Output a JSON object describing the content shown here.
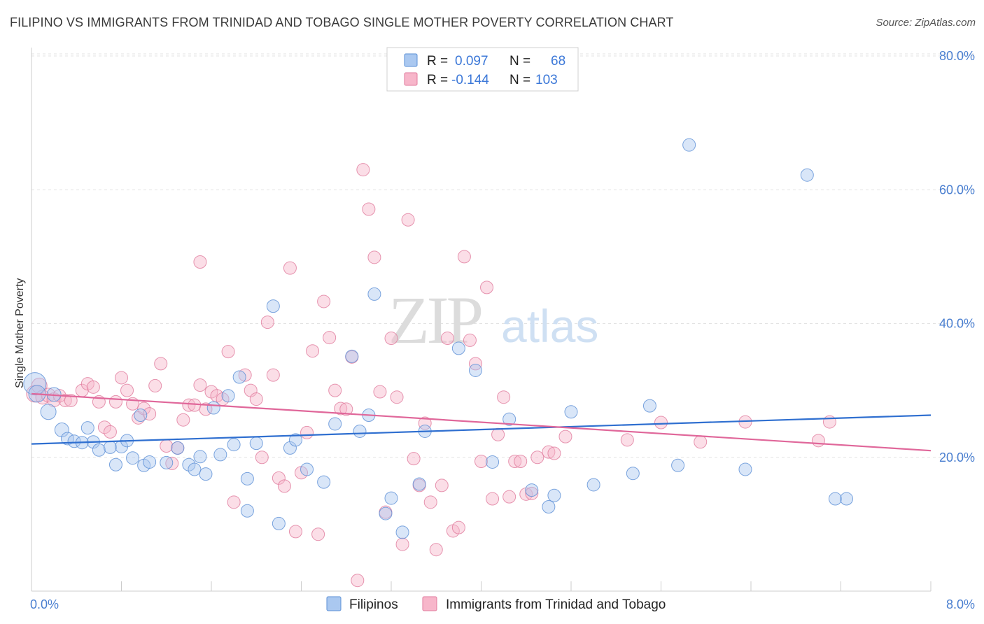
{
  "title": "FILIPINO VS IMMIGRANTS FROM TRINIDAD AND TOBAGO SINGLE MOTHER POVERTY CORRELATION CHART",
  "source": "Source: ZipAtlas.com",
  "watermark": {
    "zip": "ZIP",
    "atlas": "atlas"
  },
  "legend": {
    "rows": [
      {
        "r_label": "R =",
        "r_value": "0.097",
        "n_label": "N =",
        "n_value": "68",
        "color": "#aac8f0",
        "stroke": "#5b8fd6"
      },
      {
        "r_label": "R =",
        "r_value": "-0.144",
        "n_label": "N =",
        "n_value": "103",
        "color": "#f7b6ca",
        "stroke": "#e07a9c"
      }
    ]
  },
  "bottom_legend": [
    "Filipinos",
    "Immigrants from Trinidad and Tobago"
  ],
  "chart_data": {
    "type": "scatter",
    "title": "FILIPINO VS IMMIGRANTS FROM TRINIDAD AND TOBAGO SINGLE MOTHER POVERTY CORRELATION CHART",
    "xlabel": "",
    "ylabel": "Single Mother Poverty",
    "xlim": [
      0,
      8
    ],
    "ylim": [
      0,
      80
    ],
    "x_tick_labels": [
      "0.0%",
      "8.0%"
    ],
    "y_tick_labels": [
      "20.0%",
      "40.0%",
      "60.0%",
      "80.0%"
    ],
    "y_ticks": [
      20,
      40,
      60,
      80
    ],
    "grid": true,
    "legend_position": "top-center",
    "series": [
      {
        "name": "Filipinos",
        "color": "#5b8fd6",
        "fill": "#aac8f0",
        "trend": {
          "x": [
            0,
            8
          ],
          "y": [
            22.0,
            26.3
          ],
          "color": "#2f6fd0"
        },
        "points": [
          [
            0.03,
            31.0,
            16
          ],
          [
            0.05,
            29.5,
            12
          ],
          [
            0.15,
            26.8,
            11
          ],
          [
            0.2,
            29.4,
            10
          ],
          [
            0.27,
            24.1,
            10
          ],
          [
            0.32,
            22.8,
            9
          ],
          [
            0.38,
            22.4,
            9
          ],
          [
            0.45,
            22.2,
            9
          ],
          [
            0.5,
            24.4,
            9
          ],
          [
            0.55,
            22.3,
            9
          ],
          [
            0.6,
            21.1,
            9
          ],
          [
            0.7,
            21.5,
            9
          ],
          [
            0.8,
            21.6,
            9
          ],
          [
            0.85,
            22.5,
            9
          ],
          [
            0.9,
            19.9,
            9
          ],
          [
            0.97,
            26.3,
            9
          ],
          [
            0.75,
            18.9,
            9
          ],
          [
            1.0,
            18.8,
            9
          ],
          [
            1.05,
            19.3,
            9
          ],
          [
            1.2,
            19.2,
            9
          ],
          [
            1.3,
            21.4,
            9
          ],
          [
            1.4,
            18.9,
            9
          ],
          [
            1.45,
            18.2,
            9
          ],
          [
            1.5,
            20.1,
            9
          ],
          [
            1.55,
            17.5,
            9
          ],
          [
            1.62,
            27.4,
            9
          ],
          [
            1.68,
            20.4,
            9
          ],
          [
            1.75,
            29.2,
            9
          ],
          [
            1.8,
            21.9,
            9
          ],
          [
            1.85,
            32.0,
            9
          ],
          [
            1.92,
            16.8,
            9
          ],
          [
            1.92,
            12.0,
            9
          ],
          [
            2.0,
            22.1,
            9
          ],
          [
            2.15,
            42.6,
            9
          ],
          [
            2.2,
            10.1,
            9
          ],
          [
            2.3,
            21.4,
            9
          ],
          [
            2.35,
            22.6,
            9
          ],
          [
            2.45,
            18.2,
            9
          ],
          [
            2.6,
            16.3,
            9
          ],
          [
            2.7,
            25.0,
            9
          ],
          [
            2.85,
            35.1,
            9
          ],
          [
            2.92,
            23.9,
            9
          ],
          [
            3.0,
            26.3,
            9
          ],
          [
            3.05,
            44.4,
            9
          ],
          [
            3.15,
            11.6,
            9
          ],
          [
            3.2,
            13.9,
            9
          ],
          [
            3.3,
            8.8,
            9
          ],
          [
            3.45,
            16.0,
            9
          ],
          [
            3.5,
            23.9,
            9
          ],
          [
            3.8,
            36.3,
            9
          ],
          [
            3.95,
            33.0,
            9
          ],
          [
            4.1,
            19.3,
            9
          ],
          [
            4.25,
            25.7,
            9
          ],
          [
            4.45,
            15.1,
            9
          ],
          [
            4.6,
            12.6,
            9
          ],
          [
            4.65,
            14.3,
            9
          ],
          [
            4.8,
            26.8,
            9
          ],
          [
            5.0,
            15.9,
            9
          ],
          [
            5.35,
            17.6,
            9
          ],
          [
            5.5,
            27.7,
            9
          ],
          [
            5.75,
            18.8,
            9
          ],
          [
            5.85,
            66.7,
            9
          ],
          [
            6.35,
            18.2,
            9
          ],
          [
            6.9,
            62.2,
            9
          ],
          [
            7.15,
            13.8,
            9
          ],
          [
            7.25,
            13.8,
            9
          ]
        ]
      },
      {
        "name": "Immigrants from Trinidad and Tobago",
        "color": "#e07a9c",
        "fill": "#f7b6ca",
        "trend": {
          "x": [
            0,
            8
          ],
          "y": [
            29.5,
            21.0
          ],
          "color": "#e0679a"
        },
        "points": [
          [
            0.03,
            29.5,
            12
          ],
          [
            0.07,
            30.7,
            11
          ],
          [
            0.1,
            29.0,
            10
          ],
          [
            0.15,
            29.3,
            10
          ],
          [
            0.2,
            28.6,
            10
          ],
          [
            0.25,
            29.2,
            9
          ],
          [
            0.3,
            28.5,
            9
          ],
          [
            0.35,
            28.5,
            9
          ],
          [
            0.45,
            30.0,
            9
          ],
          [
            0.5,
            31.0,
            9
          ],
          [
            0.55,
            30.5,
            9
          ],
          [
            0.6,
            28.3,
            9
          ],
          [
            0.65,
            24.5,
            9
          ],
          [
            0.7,
            23.8,
            9
          ],
          [
            0.75,
            28.3,
            9
          ],
          [
            0.8,
            31.9,
            9
          ],
          [
            0.85,
            30.0,
            9
          ],
          [
            0.9,
            28.0,
            9
          ],
          [
            0.95,
            25.9,
            9
          ],
          [
            1.0,
            27.3,
            9
          ],
          [
            1.05,
            26.5,
            9
          ],
          [
            1.1,
            30.7,
            9
          ],
          [
            1.15,
            34.0,
            9
          ],
          [
            1.2,
            21.7,
            9
          ],
          [
            1.25,
            19.1,
            9
          ],
          [
            1.3,
            21.4,
            9
          ],
          [
            1.35,
            25.6,
            9
          ],
          [
            1.4,
            27.8,
            9
          ],
          [
            1.45,
            27.8,
            9
          ],
          [
            1.5,
            30.8,
            9
          ],
          [
            1.55,
            27.2,
            9
          ],
          [
            1.6,
            29.8,
            9
          ],
          [
            1.65,
            29.2,
            9
          ],
          [
            1.7,
            28.7,
            9
          ],
          [
            1.5,
            49.2,
            9
          ],
          [
            1.75,
            35.8,
            9
          ],
          [
            1.8,
            13.3,
            9
          ],
          [
            1.9,
            32.3,
            9
          ],
          [
            1.95,
            30.0,
            9
          ],
          [
            2.0,
            28.7,
            9
          ],
          [
            2.05,
            20.0,
            9
          ],
          [
            2.1,
            40.2,
            9
          ],
          [
            2.15,
            32.3,
            9
          ],
          [
            2.2,
            16.9,
            9
          ],
          [
            2.25,
            15.7,
            9
          ],
          [
            2.3,
            48.3,
            9
          ],
          [
            2.35,
            8.9,
            9
          ],
          [
            2.4,
            17.7,
            9
          ],
          [
            2.45,
            23.7,
            9
          ],
          [
            2.5,
            35.9,
            9
          ],
          [
            2.55,
            8.5,
            9
          ],
          [
            2.6,
            43.3,
            9
          ],
          [
            2.65,
            37.9,
            9
          ],
          [
            2.7,
            30.0,
            9
          ],
          [
            2.75,
            27.3,
            9
          ],
          [
            2.8,
            27.2,
            9
          ],
          [
            2.85,
            35.0,
            9
          ],
          [
            2.9,
            1.6,
            9
          ],
          [
            2.95,
            63.0,
            9
          ],
          [
            3.0,
            57.1,
            9
          ],
          [
            3.05,
            49.9,
            9
          ],
          [
            3.1,
            29.8,
            9
          ],
          [
            3.15,
            11.8,
            9
          ],
          [
            3.2,
            37.8,
            9
          ],
          [
            3.25,
            29.0,
            9
          ],
          [
            3.3,
            7.0,
            9
          ],
          [
            3.35,
            55.5,
            9
          ],
          [
            3.4,
            19.8,
            9
          ],
          [
            3.45,
            15.8,
            9
          ],
          [
            3.5,
            25.1,
            9
          ],
          [
            3.55,
            13.3,
            9
          ],
          [
            3.6,
            6.2,
            9
          ],
          [
            3.65,
            15.8,
            9
          ],
          [
            3.7,
            37.8,
            9
          ],
          [
            3.75,
            9.0,
            9
          ],
          [
            3.8,
            9.5,
            9
          ],
          [
            3.85,
            50.0,
            9
          ],
          [
            3.9,
            37.5,
            9
          ],
          [
            3.95,
            34.0,
            9
          ],
          [
            4.0,
            19.4,
            9
          ],
          [
            4.05,
            45.4,
            9
          ],
          [
            4.1,
            13.8,
            9
          ],
          [
            4.15,
            23.4,
            9
          ],
          [
            4.2,
            29.0,
            9
          ],
          [
            4.25,
            14.1,
            9
          ],
          [
            4.3,
            19.4,
            9
          ],
          [
            4.35,
            19.4,
            9
          ],
          [
            4.4,
            14.5,
            9
          ],
          [
            4.45,
            14.6,
            9
          ],
          [
            4.5,
            20.0,
            9
          ],
          [
            4.6,
            20.8,
            9
          ],
          [
            4.65,
            20.6,
            9
          ],
          [
            4.75,
            23.1,
            9
          ],
          [
            5.3,
            22.6,
            9
          ],
          [
            5.6,
            25.2,
            9
          ],
          [
            5.95,
            22.3,
            9
          ],
          [
            6.35,
            25.3,
            9
          ],
          [
            7.0,
            22.5,
            9
          ],
          [
            7.1,
            25.3,
            9
          ]
        ]
      }
    ]
  }
}
